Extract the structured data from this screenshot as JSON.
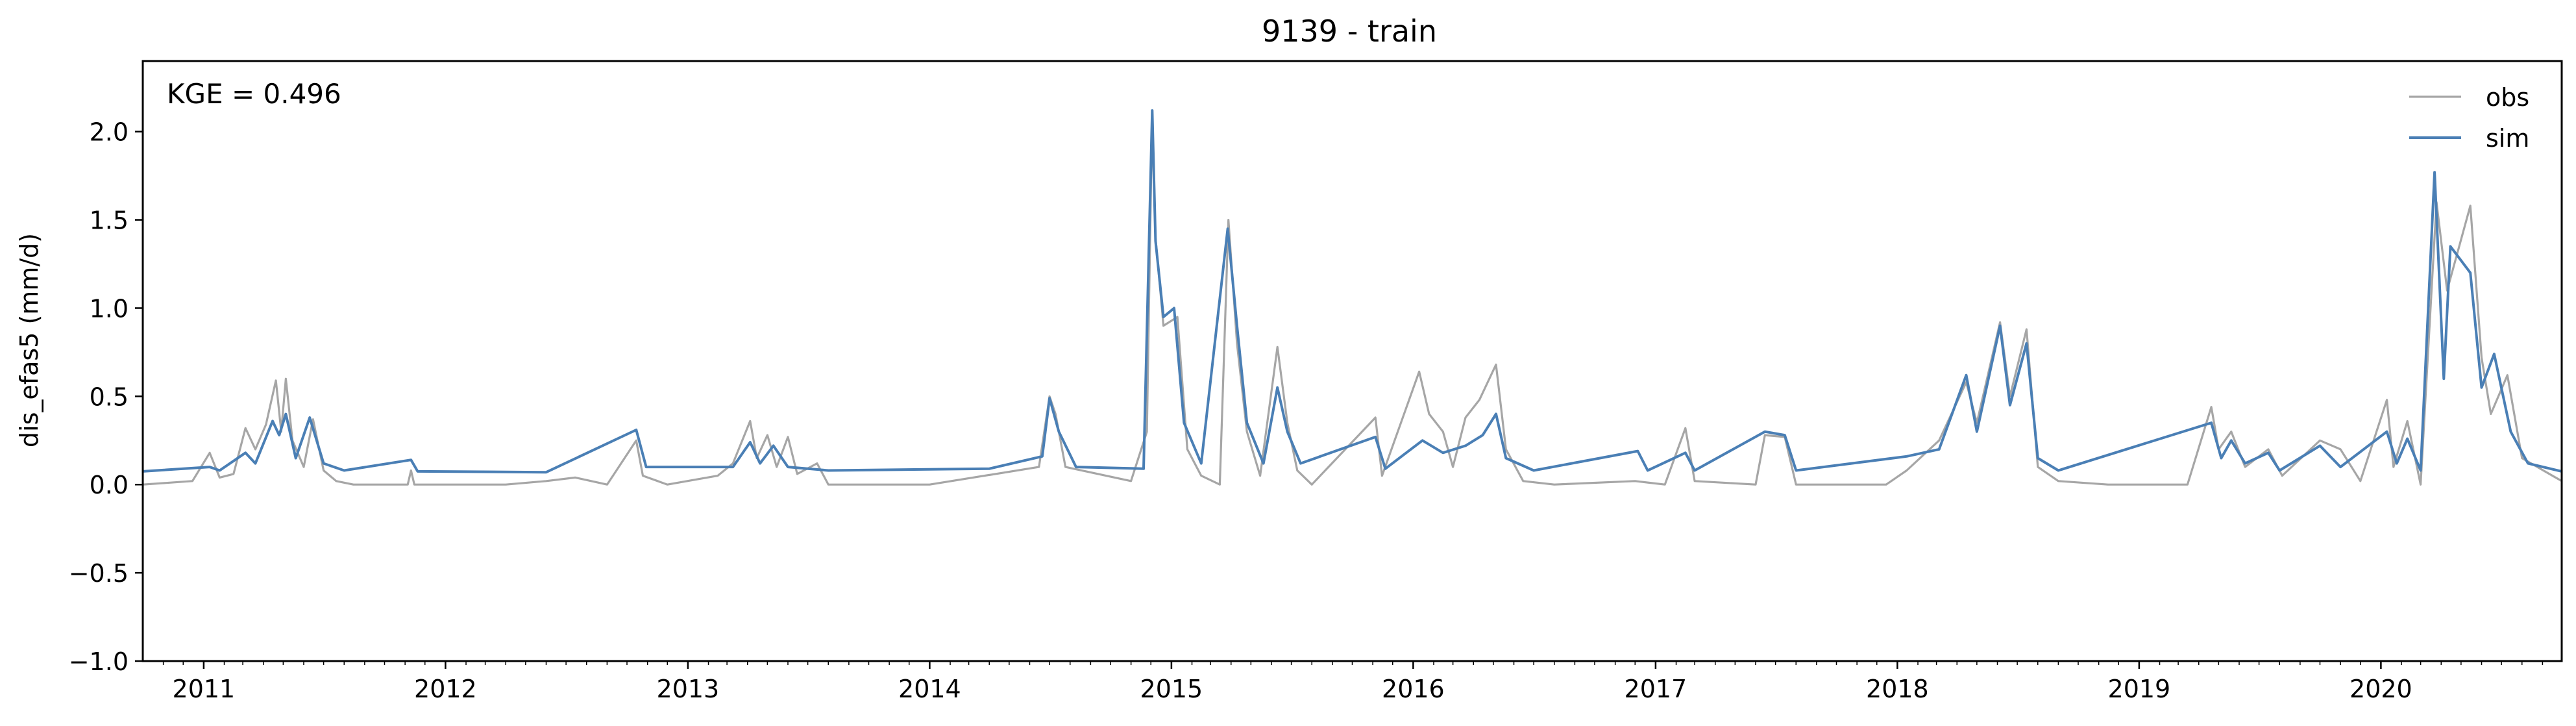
{
  "chart_data": {
    "type": "line",
    "title": "9139 - train",
    "xlabel": "",
    "ylabel": "dis_efas5 (mm/d)",
    "ylim": [
      -1.0,
      2.4
    ],
    "xlim": [
      "2010-10-01",
      "2020-09-30"
    ],
    "y_ticks": [
      -1.0,
      -0.5,
      0.0,
      0.5,
      1.0,
      1.5,
      2.0
    ],
    "y_tick_labels": [
      "−1.0",
      "−0.5",
      "0.0",
      "0.5",
      "1.0",
      "1.5",
      "2.0"
    ],
    "x_ticks": [
      "2011",
      "2012",
      "2013",
      "2014",
      "2015",
      "2016",
      "2017",
      "2018",
      "2019",
      "2020"
    ],
    "grid": false,
    "legend_position": "top-right",
    "annotation": "KGE = 0.496",
    "series": [
      {
        "name": "obs",
        "color": "#a6a6a6",
        "points": [
          [
            "2010-10-01",
            0.0
          ],
          [
            "2010-12-15",
            0.02
          ],
          [
            "2011-01-10",
            0.18
          ],
          [
            "2011-01-25",
            0.04
          ],
          [
            "2011-02-15",
            0.06
          ],
          [
            "2011-03-05",
            0.32
          ],
          [
            "2011-03-20",
            0.2
          ],
          [
            "2011-04-05",
            0.34
          ],
          [
            "2011-04-20",
            0.59
          ],
          [
            "2011-04-28",
            0.3
          ],
          [
            "2011-05-05",
            0.6
          ],
          [
            "2011-05-15",
            0.25
          ],
          [
            "2011-06-01",
            0.1
          ],
          [
            "2011-06-15",
            0.37
          ],
          [
            "2011-07-01",
            0.08
          ],
          [
            "2011-07-20",
            0.02
          ],
          [
            "2011-08-15",
            0.0
          ],
          [
            "2011-11-05",
            0.0
          ],
          [
            "2011-11-10",
            0.08
          ],
          [
            "2011-11-15",
            0.0
          ],
          [
            "2012-04-01",
            0.0
          ],
          [
            "2012-06-01",
            0.02
          ],
          [
            "2012-07-15",
            0.04
          ],
          [
            "2012-09-01",
            0.0
          ],
          [
            "2012-10-15",
            0.25
          ],
          [
            "2012-10-25",
            0.05
          ],
          [
            "2012-12-01",
            0.0
          ],
          [
            "2013-02-15",
            0.05
          ],
          [
            "2013-03-10",
            0.12
          ],
          [
            "2013-04-05",
            0.36
          ],
          [
            "2013-04-15",
            0.15
          ],
          [
            "2013-05-01",
            0.28
          ],
          [
            "2013-05-15",
            0.1
          ],
          [
            "2013-06-01",
            0.27
          ],
          [
            "2013-06-15",
            0.06
          ],
          [
            "2013-07-15",
            0.12
          ],
          [
            "2013-08-01",
            0.0
          ],
          [
            "2014-01-01",
            0.0
          ],
          [
            "2014-06-15",
            0.1
          ],
          [
            "2014-07-01",
            0.5
          ],
          [
            "2014-07-10",
            0.4
          ],
          [
            "2014-07-25",
            0.1
          ],
          [
            "2014-11-01",
            0.02
          ],
          [
            "2014-11-25",
            0.3
          ],
          [
            "2014-12-03",
            2.12
          ],
          [
            "2014-12-08",
            1.4
          ],
          [
            "2014-12-20",
            0.9
          ],
          [
            "2015-01-10",
            0.95
          ],
          [
            "2015-01-25",
            0.2
          ],
          [
            "2015-02-15",
            0.05
          ],
          [
            "2015-03-15",
            0.0
          ],
          [
            "2015-03-28",
            1.5
          ],
          [
            "2015-04-10",
            0.8
          ],
          [
            "2015-04-25",
            0.3
          ],
          [
            "2015-05-15",
            0.05
          ],
          [
            "2015-06-10",
            0.78
          ],
          [
            "2015-06-25",
            0.35
          ],
          [
            "2015-07-10",
            0.08
          ],
          [
            "2015-08-01",
            0.0
          ],
          [
            "2015-11-05",
            0.38
          ],
          [
            "2015-11-15",
            0.05
          ],
          [
            "2016-01-10",
            0.64
          ],
          [
            "2016-01-25",
            0.4
          ],
          [
            "2016-02-15",
            0.3
          ],
          [
            "2016-03-01",
            0.1
          ],
          [
            "2016-03-20",
            0.38
          ],
          [
            "2016-04-10",
            0.48
          ],
          [
            "2016-05-05",
            0.68
          ],
          [
            "2016-05-20",
            0.2
          ],
          [
            "2016-06-15",
            0.02
          ],
          [
            "2016-08-01",
            0.0
          ],
          [
            "2016-12-01",
            0.02
          ],
          [
            "2017-01-15",
            0.0
          ],
          [
            "2017-02-15",
            0.32
          ],
          [
            "2017-03-01",
            0.02
          ],
          [
            "2017-06-01",
            0.0
          ],
          [
            "2017-06-15",
            0.28
          ],
          [
            "2017-07-15",
            0.27
          ],
          [
            "2017-08-01",
            0.0
          ],
          [
            "2017-12-15",
            0.0
          ],
          [
            "2018-01-15",
            0.08
          ],
          [
            "2018-03-05",
            0.25
          ],
          [
            "2018-04-15",
            0.58
          ],
          [
            "2018-05-01",
            0.35
          ],
          [
            "2018-06-05",
            0.92
          ],
          [
            "2018-06-20",
            0.5
          ],
          [
            "2018-07-15",
            0.88
          ],
          [
            "2018-08-01",
            0.1
          ],
          [
            "2018-09-01",
            0.02
          ],
          [
            "2018-11-15",
            0.0
          ],
          [
            "2019-03-15",
            0.0
          ],
          [
            "2019-04-20",
            0.44
          ],
          [
            "2019-05-01",
            0.2
          ],
          [
            "2019-05-20",
            0.3
          ],
          [
            "2019-06-10",
            0.1
          ],
          [
            "2019-07-15",
            0.2
          ],
          [
            "2019-08-05",
            0.05
          ],
          [
            "2019-10-01",
            0.25
          ],
          [
            "2019-11-01",
            0.2
          ],
          [
            "2019-12-01",
            0.02
          ],
          [
            "2020-01-10",
            0.48
          ],
          [
            "2020-01-20",
            0.1
          ],
          [
            "2020-02-10",
            0.36
          ],
          [
            "2020-03-01",
            0.0
          ],
          [
            "2020-03-25",
            1.6
          ],
          [
            "2020-04-10",
            1.1
          ],
          [
            "2020-05-15",
            1.58
          ],
          [
            "2020-06-01",
            0.72
          ],
          [
            "2020-06-15",
            0.4
          ],
          [
            "2020-07-10",
            0.62
          ],
          [
            "2020-08-01",
            0.15
          ],
          [
            "2020-09-30",
            0.02
          ]
        ]
      },
      {
        "name": "sim",
        "color": "#4a7fb5",
        "points": [
          [
            "2010-10-01",
            0.075
          ],
          [
            "2011-01-10",
            0.1
          ],
          [
            "2011-01-25",
            0.08
          ],
          [
            "2011-03-05",
            0.18
          ],
          [
            "2011-03-20",
            0.12
          ],
          [
            "2011-04-15",
            0.36
          ],
          [
            "2011-04-25",
            0.28
          ],
          [
            "2011-05-05",
            0.4
          ],
          [
            "2011-05-20",
            0.15
          ],
          [
            "2011-06-10",
            0.38
          ],
          [
            "2011-07-01",
            0.12
          ],
          [
            "2011-08-01",
            0.08
          ],
          [
            "2011-11-10",
            0.14
          ],
          [
            "2011-11-20",
            0.075
          ],
          [
            "2012-06-01",
            0.07
          ],
          [
            "2012-10-15",
            0.31
          ],
          [
            "2012-10-30",
            0.1
          ],
          [
            "2013-03-10",
            0.1
          ],
          [
            "2013-04-05",
            0.24
          ],
          [
            "2013-04-20",
            0.12
          ],
          [
            "2013-05-10",
            0.22
          ],
          [
            "2013-06-01",
            0.1
          ],
          [
            "2013-08-01",
            0.08
          ],
          [
            "2014-04-01",
            0.09
          ],
          [
            "2014-06-20",
            0.16
          ],
          [
            "2014-07-01",
            0.49
          ],
          [
            "2014-07-15",
            0.3
          ],
          [
            "2014-08-10",
            0.1
          ],
          [
            "2014-11-20",
            0.09
          ],
          [
            "2014-12-03",
            2.12
          ],
          [
            "2014-12-08",
            1.38
          ],
          [
            "2014-12-20",
            0.95
          ],
          [
            "2015-01-05",
            1.0
          ],
          [
            "2015-01-20",
            0.35
          ],
          [
            "2015-02-15",
            0.12
          ],
          [
            "2015-03-27",
            1.45
          ],
          [
            "2015-04-10",
            0.9
          ],
          [
            "2015-04-25",
            0.35
          ],
          [
            "2015-05-20",
            0.12
          ],
          [
            "2015-06-10",
            0.55
          ],
          [
            "2015-06-25",
            0.3
          ],
          [
            "2015-07-15",
            0.12
          ],
          [
            "2015-11-05",
            0.27
          ],
          [
            "2015-11-20",
            0.09
          ],
          [
            "2016-01-15",
            0.25
          ],
          [
            "2016-02-15",
            0.18
          ],
          [
            "2016-03-20",
            0.22
          ],
          [
            "2016-04-15",
            0.28
          ],
          [
            "2016-05-05",
            0.4
          ],
          [
            "2016-05-20",
            0.15
          ],
          [
            "2016-07-01",
            0.08
          ],
          [
            "2016-12-05",
            0.19
          ],
          [
            "2016-12-20",
            0.08
          ],
          [
            "2017-02-15",
            0.18
          ],
          [
            "2017-03-01",
            0.08
          ],
          [
            "2017-06-15",
            0.3
          ],
          [
            "2017-07-15",
            0.28
          ],
          [
            "2017-08-01",
            0.08
          ],
          [
            "2018-01-15",
            0.16
          ],
          [
            "2018-03-05",
            0.2
          ],
          [
            "2018-04-15",
            0.62
          ],
          [
            "2018-05-01",
            0.3
          ],
          [
            "2018-06-05",
            0.9
          ],
          [
            "2018-06-20",
            0.45
          ],
          [
            "2018-07-15",
            0.8
          ],
          [
            "2018-08-01",
            0.15
          ],
          [
            "2018-09-01",
            0.08
          ],
          [
            "2019-04-20",
            0.35
          ],
          [
            "2019-05-05",
            0.15
          ],
          [
            "2019-05-20",
            0.25
          ],
          [
            "2019-06-10",
            0.12
          ],
          [
            "2019-07-15",
            0.18
          ],
          [
            "2019-08-01",
            0.08
          ],
          [
            "2019-10-01",
            0.22
          ],
          [
            "2019-11-01",
            0.1
          ],
          [
            "2020-01-10",
            0.3
          ],
          [
            "2020-01-25",
            0.12
          ],
          [
            "2020-02-10",
            0.26
          ],
          [
            "2020-03-01",
            0.08
          ],
          [
            "2020-03-22",
            1.77
          ],
          [
            "2020-04-05",
            0.6
          ],
          [
            "2020-04-15",
            1.35
          ],
          [
            "2020-05-15",
            1.2
          ],
          [
            "2020-06-01",
            0.55
          ],
          [
            "2020-06-20",
            0.74
          ],
          [
            "2020-07-15",
            0.3
          ],
          [
            "2020-08-10",
            0.12
          ],
          [
            "2020-09-30",
            0.075
          ]
        ]
      }
    ]
  }
}
